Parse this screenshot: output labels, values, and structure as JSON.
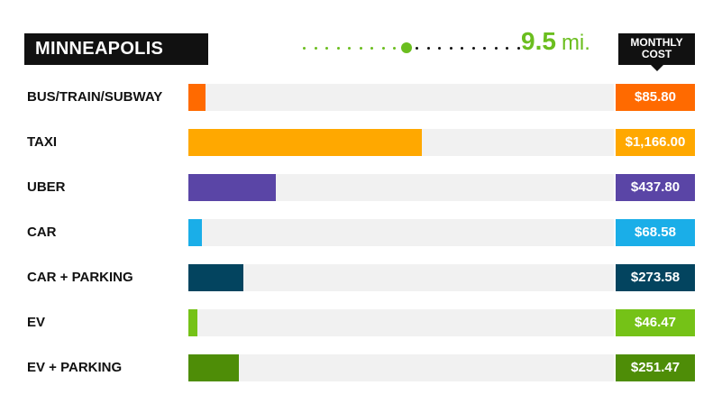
{
  "header": {
    "city": "MINNEAPOLIS",
    "distance_value": "9.5",
    "distance_unit": "mi.",
    "cost_column_label_line1": "MONTHLY",
    "cost_column_label_line2": "COST"
  },
  "slider": {
    "accent_color": "#6bbe1f",
    "inactive_color": "#111111",
    "position_fraction": 0.5
  },
  "chart_data": {
    "type": "bar",
    "orientation": "horizontal",
    "title": "",
    "xlabel": "",
    "ylabel": "",
    "xlim": [
      0,
      2125
    ],
    "categories": [
      "BUS/TRAIN/SUBWAY",
      "TAXI",
      "UBER",
      "CAR",
      "CAR + PARKING",
      "EV",
      "EV + PARKING"
    ],
    "values": [
      85.8,
      1166.0,
      437.8,
      68.58,
      273.58,
      46.47,
      251.47
    ],
    "value_labels": [
      "$85.80",
      "$1,166.00",
      "$437.80",
      "$68.58",
      "$273.58",
      "$46.47",
      "$251.47"
    ],
    "colors": [
      "#ff6a00",
      "#ffa800",
      "#5a45a6",
      "#1aaee8",
      "#03445f",
      "#75c217",
      "#4e8d07"
    ]
  }
}
